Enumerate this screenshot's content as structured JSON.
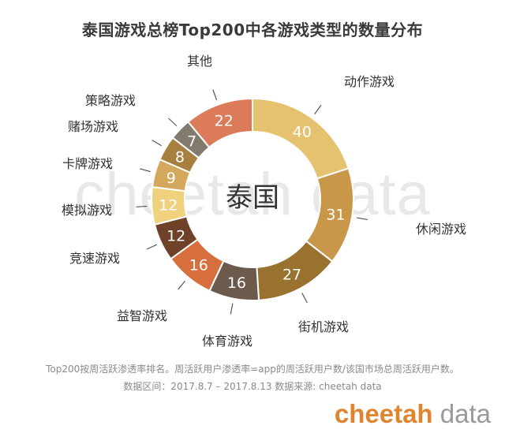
{
  "chart_data": {
    "type": "pie",
    "title": "泰国游戏总榜Top200中各游戏类型的数量分布",
    "center_label": "泰国",
    "categories": [
      "动作游戏",
      "休闲游戏",
      "街机游戏",
      "体育游戏",
      "益智游戏",
      "竞速游戏",
      "模拟游戏",
      "卡牌游戏",
      "赌场游戏",
      "策略游戏",
      "其他"
    ],
    "values": [
      40,
      31,
      27,
      16,
      16,
      12,
      12,
      9,
      8,
      7,
      22
    ],
    "colors": [
      "#e4c26f",
      "#c9974a",
      "#9a7230",
      "#6c5a4c",
      "#d66f3d",
      "#6e4128",
      "#f0d17e",
      "#d3a75c",
      "#a7803f",
      "#827a6c",
      "#dc7b5a"
    ],
    "donut": true
  },
  "footnote": "Top200按周活跃渗透率排名。周活跃用户渗透率=app的周活跃用户数/该国市场总周活跃用户数。",
  "source": "数据区间：2017.8.7 – 2017.8.13 数据来源: cheetah data",
  "watermark": "cheetah data",
  "logo": {
    "part1": "cheetah",
    "part2": " data"
  }
}
